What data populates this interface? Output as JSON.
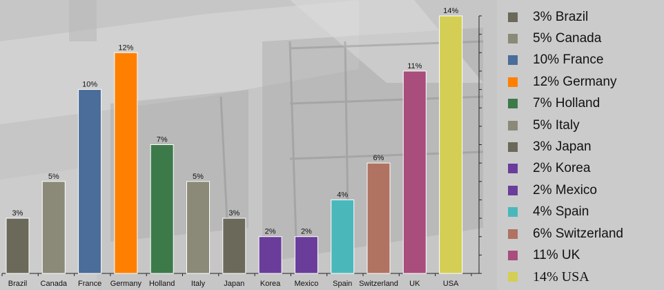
{
  "chart_data": {
    "type": "bar",
    "categories": [
      "Brazil",
      "Canada",
      "France",
      "Germany",
      "Holland",
      "Italy",
      "Japan",
      "Korea",
      "Mexico",
      "Spain",
      "Switzerland",
      "UK",
      "USA"
    ],
    "values": [
      3,
      5,
      10,
      12,
      7,
      5,
      3,
      2,
      2,
      4,
      6,
      11,
      14
    ],
    "data_labels": [
      "3%",
      "5%",
      "10%",
      "12%",
      "7%",
      "5%",
      "3%",
      "2%",
      "2%",
      "4%",
      "6%",
      "11%",
      "14%"
    ],
    "colors": [
      "#6b6a5a",
      "#8b8a78",
      "#4a6d99",
      "#ff8000",
      "#3d7a4a",
      "#8b8a78",
      "#6b6a5a",
      "#6a3d9a",
      "#6a3d9a",
      "#4ab8bb",
      "#b07261",
      "#a84d7c",
      "#d4cf54"
    ],
    "ylim": [
      0,
      14
    ],
    "grid": false,
    "legend_position": "right",
    "legend": [
      {
        "label": "3% Brazil",
        "color": "#6b6a5a"
      },
      {
        "label": "5% Canada",
        "color": "#8b8a78"
      },
      {
        "label": "10% France",
        "color": "#4a6d99"
      },
      {
        "label": "12% Germany",
        "color": "#ff8000"
      },
      {
        "label": "7% Holland",
        "color": "#3d7a4a"
      },
      {
        "label": "5% Italy",
        "color": "#8b8a78"
      },
      {
        "label": "3% Japan",
        "color": "#6b6a5a"
      },
      {
        "label": "2% Korea",
        "color": "#6a3d9a"
      },
      {
        "label": "2% Mexico",
        "color": "#6a3d9a"
      },
      {
        "label": "4% Spain",
        "color": "#4ab8bb"
      },
      {
        "label": "6% Switzerland",
        "color": "#b07261"
      },
      {
        "label": "11% UK",
        "color": "#a84d7c"
      },
      {
        "label": "14% USA",
        "color": "#d4cf54"
      }
    ]
  }
}
